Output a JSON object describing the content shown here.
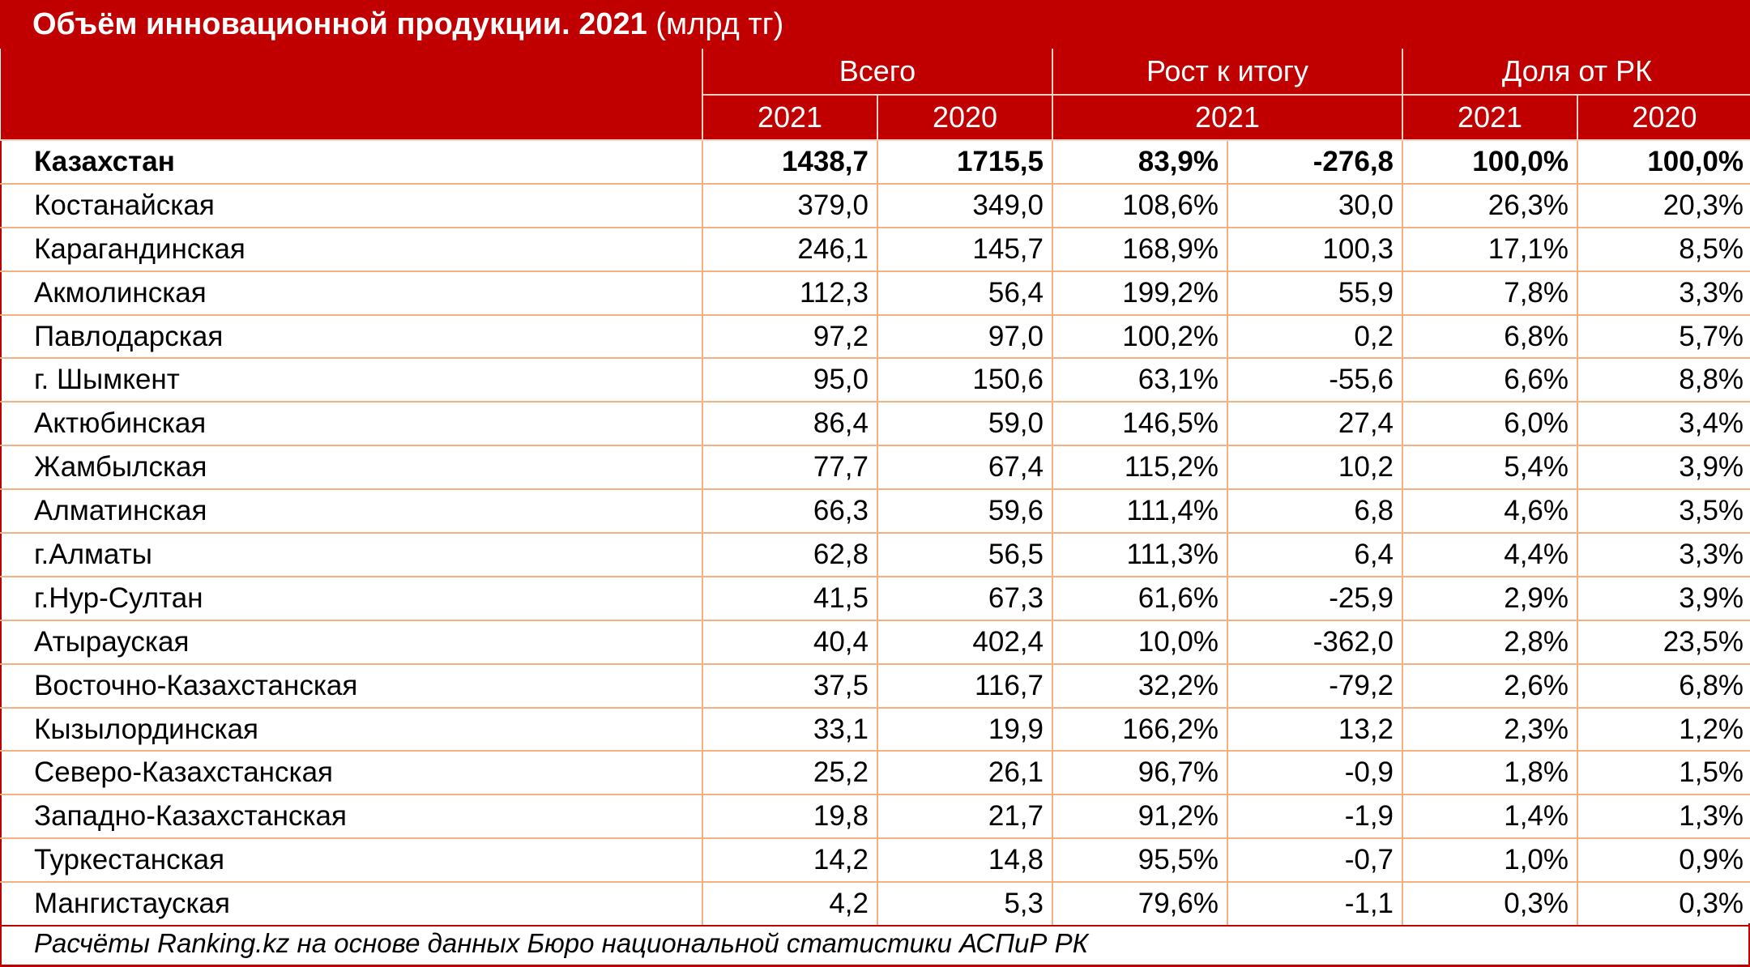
{
  "title": {
    "bold": "Объём инновационной продукции. 2021",
    "normal": " (млрд тг)"
  },
  "colors": {
    "header_bg": "#c00000",
    "header_text": "#ffffff",
    "grid": "#f4b183"
  },
  "chart_data": {
    "type": "table",
    "column_groups": [
      "Всего",
      "Рост к итогу",
      "Доля от РК"
    ],
    "sub_headers": [
      "2021",
      "2020",
      "2021",
      "2021",
      "2020"
    ],
    "rows": [
      {
        "name": "Казахстан",
        "v": [
          "1438,7",
          "1715,5",
          "83,9%",
          "-276,8",
          "100,0%",
          "100,0%"
        ]
      },
      {
        "name": "Костанайская",
        "v": [
          "379,0",
          "349,0",
          "108,6%",
          "30,0",
          "26,3%",
          "20,3%"
        ]
      },
      {
        "name": "Карагандинская",
        "v": [
          "246,1",
          "145,7",
          "168,9%",
          "100,3",
          "17,1%",
          "8,5%"
        ]
      },
      {
        "name": "Акмолинская",
        "v": [
          "112,3",
          "56,4",
          "199,2%",
          "55,9",
          "7,8%",
          "3,3%"
        ]
      },
      {
        "name": "Павлодарская",
        "v": [
          "97,2",
          "97,0",
          "100,2%",
          "0,2",
          "6,8%",
          "5,7%"
        ]
      },
      {
        "name": "г. Шымкент",
        "v": [
          "95,0",
          "150,6",
          "63,1%",
          "-55,6",
          "6,6%",
          "8,8%"
        ]
      },
      {
        "name": "Актюбинская",
        "v": [
          "86,4",
          "59,0",
          "146,5%",
          "27,4",
          "6,0%",
          "3,4%"
        ]
      },
      {
        "name": "Жамбылская",
        "v": [
          "77,7",
          "67,4",
          "115,2%",
          "10,2",
          "5,4%",
          "3,9%"
        ]
      },
      {
        "name": "Алматинская",
        "v": [
          "66,3",
          "59,6",
          "111,4%",
          "6,8",
          "4,6%",
          "3,5%"
        ]
      },
      {
        "name": "г.Алматы",
        "v": [
          "62,8",
          "56,5",
          "111,3%",
          "6,4",
          "4,4%",
          "3,3%"
        ]
      },
      {
        "name": "г.Нур-Султан",
        "v": [
          "41,5",
          "67,3",
          "61,6%",
          "-25,9",
          "2,9%",
          "3,9%"
        ]
      },
      {
        "name": "Атырауская",
        "v": [
          "40,4",
          "402,4",
          "10,0%",
          "-362,0",
          "2,8%",
          "23,5%"
        ]
      },
      {
        "name": "Восточно-Казахстанская",
        "v": [
          "37,5",
          "116,7",
          "32,2%",
          "-79,2",
          "2,6%",
          "6,8%"
        ]
      },
      {
        "name": "Кызылординская",
        "v": [
          "33,1",
          "19,9",
          "166,2%",
          "13,2",
          "2,3%",
          "1,2%"
        ]
      },
      {
        "name": "Северо-Казахстанская",
        "v": [
          "25,2",
          "26,1",
          "96,7%",
          "-0,9",
          "1,8%",
          "1,5%"
        ]
      },
      {
        "name": "Западно-Казахстанская",
        "v": [
          "19,8",
          "21,7",
          "91,2%",
          "-1,9",
          "1,4%",
          "1,3%"
        ]
      },
      {
        "name": "Туркестанская",
        "v": [
          "14,2",
          "14,8",
          "95,5%",
          "-0,7",
          "1,0%",
          "0,9%"
        ]
      },
      {
        "name": "Мангистауская",
        "v": [
          "4,2",
          "5,3",
          "79,6%",
          "-1,1",
          "0,3%",
          "0,3%"
        ]
      }
    ]
  },
  "footnote": "Расчёты Ranking.kz на основе данных Бюро национальной статистики АСПиР РК"
}
